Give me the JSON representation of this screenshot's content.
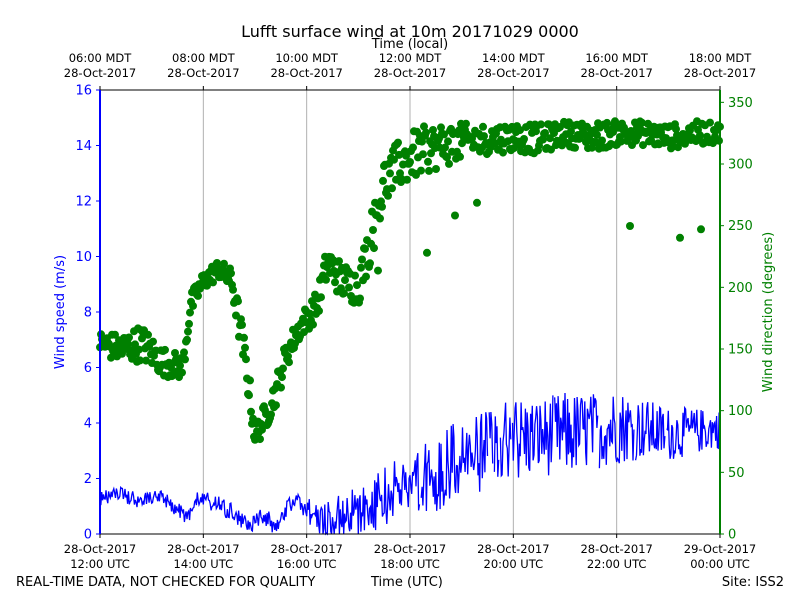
{
  "chart_data": {
    "type": "scatter",
    "title": "Lufft surface wind at 10m 20171029 0000",
    "top_axis_label": "Time (local)",
    "xlabel": "Time (UTC)",
    "ylabel_left": "Wind speed (m/s)",
    "ylabel_right": "Wind direction (degrees)",
    "x_range_hours": [
      0,
      12
    ],
    "ylim_left": [
      0,
      16
    ],
    "ylim_right": [
      0,
      360
    ],
    "grid": "vertical",
    "left_ticks": [
      "0",
      "2",
      "4",
      "6",
      "8",
      "10",
      "12",
      "14",
      "16"
    ],
    "right_ticks": [
      "0",
      "50",
      "100",
      "150",
      "200",
      "250",
      "300",
      "350"
    ],
    "bottom_ticks": [
      {
        "hour": 0,
        "line1": "28-Oct-2017",
        "line2": "12:00 UTC"
      },
      {
        "hour": 2,
        "line1": "28-Oct-2017",
        "line2": "14:00 UTC"
      },
      {
        "hour": 4,
        "line1": "28-Oct-2017",
        "line2": "16:00 UTC"
      },
      {
        "hour": 6,
        "line1": "28-Oct-2017",
        "line2": "18:00 UTC"
      },
      {
        "hour": 8,
        "line1": "28-Oct-2017",
        "line2": "20:00 UTC"
      },
      {
        "hour": 10,
        "line1": "28-Oct-2017",
        "line2": "22:00 UTC"
      },
      {
        "hour": 12,
        "line1": "29-Oct-2017",
        "line2": "00:00 UTC"
      }
    ],
    "top_ticks": [
      {
        "hour": 0,
        "line1": "06:00 MDT",
        "line2": "28-Oct-2017"
      },
      {
        "hour": 2,
        "line1": "08:00 MDT",
        "line2": "28-Oct-2017"
      },
      {
        "hour": 4,
        "line1": "10:00 MDT",
        "line2": "28-Oct-2017"
      },
      {
        "hour": 6,
        "line1": "12:00 MDT",
        "line2": "28-Oct-2017"
      },
      {
        "hour": 8,
        "line1": "14:00 MDT",
        "line2": "28-Oct-2017"
      },
      {
        "hour": 10,
        "line1": "16:00 MDT",
        "line2": "28-Oct-2017"
      },
      {
        "hour": 12,
        "line1": "18:00 MDT",
        "line2": "28-Oct-2017"
      }
    ],
    "series": [
      {
        "name": "Wind speed",
        "axis": "left",
        "style": "line",
        "color": "#0000ff",
        "anchors": [
          {
            "x": 0.0,
            "y": 1.2,
            "noise": 0.2
          },
          {
            "x": 0.3,
            "y": 1.5,
            "noise": 0.2
          },
          {
            "x": 0.8,
            "y": 1.2,
            "noise": 0.2
          },
          {
            "x": 1.2,
            "y": 1.3,
            "noise": 0.2
          },
          {
            "x": 1.5,
            "y": 0.9,
            "noise": 0.2
          },
          {
            "x": 1.7,
            "y": 0.6,
            "noise": 0.2
          },
          {
            "x": 1.9,
            "y": 1.3,
            "noise": 0.2
          },
          {
            "x": 2.2,
            "y": 1.1,
            "noise": 0.25
          },
          {
            "x": 2.6,
            "y": 0.7,
            "noise": 0.25
          },
          {
            "x": 2.9,
            "y": 0.3,
            "noise": 0.2
          },
          {
            "x": 3.2,
            "y": 0.6,
            "noise": 0.3
          },
          {
            "x": 3.4,
            "y": 0.2,
            "noise": 0.15
          },
          {
            "x": 3.6,
            "y": 0.9,
            "noise": 0.2
          },
          {
            "x": 3.8,
            "y": 1.3,
            "noise": 0.2
          },
          {
            "x": 4.0,
            "y": 0.9,
            "noise": 0.3
          },
          {
            "x": 4.2,
            "y": 0.6,
            "noise": 0.4
          },
          {
            "x": 4.5,
            "y": 0.5,
            "noise": 0.5
          },
          {
            "x": 4.8,
            "y": 0.7,
            "noise": 0.7
          },
          {
            "x": 5.2,
            "y": 0.9,
            "noise": 0.7
          },
          {
            "x": 5.6,
            "y": 1.5,
            "noise": 0.8
          },
          {
            "x": 6.0,
            "y": 1.8,
            "noise": 0.9
          },
          {
            "x": 6.5,
            "y": 2.2,
            "noise": 1.0
          },
          {
            "x": 7.0,
            "y": 2.7,
            "noise": 1.1
          },
          {
            "x": 7.5,
            "y": 3.0,
            "noise": 1.0
          },
          {
            "x": 8.0,
            "y": 3.4,
            "noise": 1.2
          },
          {
            "x": 8.5,
            "y": 3.5,
            "noise": 1.0
          },
          {
            "x": 9.0,
            "y": 3.6,
            "noise": 1.1
          },
          {
            "x": 9.5,
            "y": 3.7,
            "noise": 1.0
          },
          {
            "x": 10.0,
            "y": 3.9,
            "noise": 1.0
          },
          {
            "x": 10.5,
            "y": 3.8,
            "noise": 0.8
          },
          {
            "x": 11.0,
            "y": 3.6,
            "noise": 0.7
          },
          {
            "x": 11.5,
            "y": 3.7,
            "noise": 0.6
          },
          {
            "x": 12.0,
            "y": 3.8,
            "noise": 0.5
          }
        ]
      },
      {
        "name": "Wind direction",
        "axis": "right",
        "style": "points",
        "color": "#008000",
        "anchors": [
          {
            "x": 0.0,
            "y": 155,
            "noise": 10
          },
          {
            "x": 0.4,
            "y": 150,
            "noise": 12
          },
          {
            "x": 0.8,
            "y": 155,
            "noise": 15
          },
          {
            "x": 1.2,
            "y": 140,
            "noise": 12
          },
          {
            "x": 1.6,
            "y": 135,
            "noise": 10
          },
          {
            "x": 1.75,
            "y": 185,
            "noise": 10
          },
          {
            "x": 2.0,
            "y": 205,
            "noise": 8
          },
          {
            "x": 2.3,
            "y": 215,
            "noise": 8
          },
          {
            "x": 2.55,
            "y": 205,
            "noise": 10
          },
          {
            "x": 2.7,
            "y": 170,
            "noise": 15
          },
          {
            "x": 2.85,
            "y": 130,
            "noise": 15
          },
          {
            "x": 3.0,
            "y": 80,
            "noise": 10
          },
          {
            "x": 3.2,
            "y": 95,
            "noise": 12
          },
          {
            "x": 3.4,
            "y": 115,
            "noise": 12
          },
          {
            "x": 3.6,
            "y": 145,
            "noise": 12
          },
          {
            "x": 3.9,
            "y": 170,
            "noise": 10
          },
          {
            "x": 4.2,
            "y": 185,
            "noise": 12
          },
          {
            "x": 4.4,
            "y": 220,
            "noise": 15
          },
          {
            "x": 4.7,
            "y": 205,
            "noise": 15
          },
          {
            "x": 5.0,
            "y": 200,
            "noise": 15
          },
          {
            "x": 5.3,
            "y": 250,
            "noise": 20
          },
          {
            "x": 5.5,
            "y": 285,
            "noise": 20
          },
          {
            "x": 5.8,
            "y": 300,
            "noise": 20
          },
          {
            "x": 6.2,
            "y": 310,
            "noise": 20
          },
          {
            "x": 6.6,
            "y": 315,
            "noise": 18
          },
          {
            "x": 7.0,
            "y": 318,
            "noise": 15
          },
          {
            "x": 7.5,
            "y": 320,
            "noise": 12
          },
          {
            "x": 8.0,
            "y": 322,
            "noise": 12
          },
          {
            "x": 8.5,
            "y": 320,
            "noise": 12
          },
          {
            "x": 9.0,
            "y": 325,
            "noise": 10
          },
          {
            "x": 9.5,
            "y": 322,
            "noise": 12
          },
          {
            "x": 10.0,
            "y": 325,
            "noise": 10
          },
          {
            "x": 10.5,
            "y": 325,
            "noise": 10
          },
          {
            "x": 11.0,
            "y": 322,
            "noise": 10
          },
          {
            "x": 11.5,
            "y": 325,
            "noise": 10
          },
          {
            "x": 12.0,
            "y": 325,
            "noise": 8
          }
        ]
      }
    ]
  },
  "footer": {
    "disclaimer": "REAL-TIME DATA, NOT CHECKED FOR QUALITY",
    "site": "Site: ISS2"
  },
  "colors": {
    "speed": "#0000ff",
    "direction": "#008000",
    "grid": "#b0b0b0"
  }
}
